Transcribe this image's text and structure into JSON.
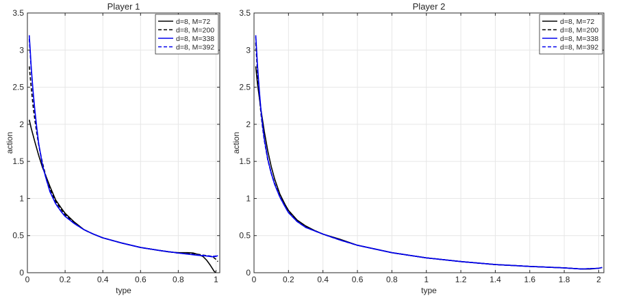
{
  "chart_data": [
    {
      "type": "line",
      "title": "Player 1",
      "xlabel": "type",
      "ylabel": "action",
      "xlim": [
        0,
        1.02
      ],
      "ylim": [
        0,
        3.5
      ],
      "xticks": [
        0,
        0.2,
        0.4,
        0.6,
        0.8,
        1
      ],
      "xtick_labels": [
        "0",
        "0.2",
        "0.4",
        "0.6",
        "0.8",
        "1"
      ],
      "yticks": [
        0,
        0.5,
        1,
        1.5,
        2,
        2.5,
        3,
        3.5
      ],
      "ytick_labels": [
        "0",
        "0.5",
        "1",
        "1.5",
        "2",
        "2.5",
        "3",
        "3.5"
      ],
      "grid": true,
      "legend_position": "top-right",
      "series": [
        {
          "name": "d=8, M=72",
          "color": "#000000",
          "dash": "solid",
          "x": [
            0.01,
            0.02,
            0.04,
            0.06,
            0.08,
            0.1,
            0.12,
            0.15,
            0.18,
            0.2,
            0.25,
            0.3,
            0.35,
            0.4,
            0.5,
            0.6,
            0.7,
            0.75,
            0.8,
            0.85,
            0.88,
            0.9,
            0.93,
            0.95,
            0.97,
            0.99,
            1.0
          ],
          "y": [
            2.06,
            1.95,
            1.76,
            1.58,
            1.42,
            1.29,
            1.16,
            0.98,
            0.87,
            0.8,
            0.68,
            0.58,
            0.52,
            0.47,
            0.4,
            0.34,
            0.3,
            0.28,
            0.27,
            0.27,
            0.265,
            0.25,
            0.22,
            0.17,
            0.1,
            0.02,
            0.0
          ]
        },
        {
          "name": "d=8, M=200",
          "color": "#000000",
          "dash": "dashed",
          "x": [
            0.01,
            0.02,
            0.03,
            0.04,
            0.05,
            0.06,
            0.08,
            0.1,
            0.12,
            0.15,
            0.18,
            0.2,
            0.25,
            0.3,
            0.35,
            0.4,
            0.5,
            0.6,
            0.7,
            0.8,
            0.9,
            0.95,
            0.98,
            1.0,
            1.01
          ],
          "y": [
            2.78,
            2.5,
            2.25,
            2.05,
            1.88,
            1.72,
            1.48,
            1.28,
            1.13,
            0.96,
            0.85,
            0.78,
            0.67,
            0.58,
            0.52,
            0.47,
            0.4,
            0.34,
            0.3,
            0.265,
            0.25,
            0.23,
            0.22,
            0.18,
            0.15
          ]
        },
        {
          "name": "d=8, M=338",
          "color": "#0000ee",
          "dash": "solid",
          "x": [
            0.01,
            0.015,
            0.02,
            0.03,
            0.04,
            0.05,
            0.06,
            0.08,
            0.1,
            0.12,
            0.15,
            0.18,
            0.2,
            0.25,
            0.3,
            0.35,
            0.4,
            0.5,
            0.6,
            0.7,
            0.8,
            0.9,
            0.95,
            0.98,
            1.0,
            1.01
          ],
          "y": [
            3.2,
            3.0,
            2.78,
            2.45,
            2.18,
            1.95,
            1.74,
            1.45,
            1.26,
            1.09,
            0.93,
            0.82,
            0.76,
            0.66,
            0.58,
            0.52,
            0.47,
            0.4,
            0.34,
            0.3,
            0.265,
            0.235,
            0.225,
            0.215,
            0.22,
            0.23
          ]
        },
        {
          "name": "d=8, M=392",
          "color": "#0000ee",
          "dash": "dashed",
          "x": [
            0.01,
            0.015,
            0.02,
            0.03,
            0.04,
            0.05,
            0.06,
            0.08,
            0.1,
            0.12,
            0.15,
            0.18,
            0.2,
            0.25,
            0.3,
            0.35,
            0.4,
            0.5,
            0.6,
            0.7,
            0.8,
            0.9,
            0.95,
            0.98,
            1.0,
            1.01
          ],
          "y": [
            3.15,
            2.95,
            2.75,
            2.42,
            2.15,
            1.93,
            1.73,
            1.45,
            1.26,
            1.09,
            0.93,
            0.82,
            0.76,
            0.66,
            0.58,
            0.52,
            0.47,
            0.4,
            0.34,
            0.3,
            0.265,
            0.24,
            0.23,
            0.22,
            0.225,
            0.23
          ]
        }
      ]
    },
    {
      "type": "line",
      "title": "Player 2",
      "xlabel": "type",
      "ylabel": "action",
      "xlim": [
        0,
        2.03
      ],
      "ylim": [
        0,
        3.5
      ],
      "xticks": [
        0,
        0.2,
        0.4,
        0.6,
        0.8,
        1,
        1.2,
        1.4,
        1.6,
        1.8,
        2
      ],
      "xtick_labels": [
        "0",
        "0.2",
        "0.4",
        "0.6",
        "0.8",
        "1",
        "1.2",
        "1.4",
        "1.6",
        "1.8",
        "2"
      ],
      "yticks": [
        0,
        0.5,
        1,
        1.5,
        2,
        2.5,
        3,
        3.5
      ],
      "ytick_labels": [
        "0",
        "0.5",
        "1",
        "1.5",
        "2",
        "2.5",
        "3",
        "3.5"
      ],
      "grid": true,
      "legend_position": "top-right",
      "series": [
        {
          "name": "d=8, M=72",
          "color": "#000000",
          "dash": "solid",
          "x": [
            0.01,
            0.02,
            0.04,
            0.06,
            0.08,
            0.1,
            0.12,
            0.15,
            0.18,
            0.2,
            0.25,
            0.3,
            0.35,
            0.4,
            0.5,
            0.6,
            0.8,
            1.0,
            1.2,
            1.4,
            1.6,
            1.8,
            1.9,
            1.95,
            2.0,
            2.02
          ],
          "y": [
            2.78,
            2.55,
            2.2,
            1.9,
            1.64,
            1.43,
            1.26,
            1.06,
            0.92,
            0.84,
            0.71,
            0.63,
            0.57,
            0.52,
            0.45,
            0.37,
            0.27,
            0.2,
            0.15,
            0.11,
            0.085,
            0.065,
            0.05,
            0.05,
            0.06,
            0.07
          ]
        },
        {
          "name": "d=8, M=200",
          "color": "#000000",
          "dash": "dashed",
          "x": [
            0.01,
            0.015,
            0.02,
            0.03,
            0.04,
            0.05,
            0.06,
            0.08,
            0.1,
            0.12,
            0.15,
            0.18,
            0.2,
            0.25,
            0.3,
            0.4,
            0.5,
            0.6,
            0.8,
            1.0,
            1.2,
            1.4,
            1.6,
            1.8,
            1.9,
            2.0,
            2.02
          ],
          "y": [
            3.1,
            2.9,
            2.7,
            2.4,
            2.15,
            1.95,
            1.78,
            1.52,
            1.34,
            1.2,
            1.03,
            0.9,
            0.82,
            0.7,
            0.62,
            0.52,
            0.44,
            0.37,
            0.27,
            0.2,
            0.15,
            0.11,
            0.085,
            0.065,
            0.05,
            0.06,
            0.07
          ]
        },
        {
          "name": "d=8, M=338",
          "color": "#0000ee",
          "dash": "solid",
          "x": [
            0.01,
            0.015,
            0.02,
            0.03,
            0.04,
            0.05,
            0.06,
            0.08,
            0.1,
            0.12,
            0.15,
            0.18,
            0.2,
            0.25,
            0.3,
            0.4,
            0.5,
            0.6,
            0.8,
            1.0,
            1.2,
            1.4,
            1.6,
            1.8,
            1.9,
            2.0,
            2.02
          ],
          "y": [
            3.2,
            3.0,
            2.8,
            2.48,
            2.2,
            1.98,
            1.8,
            1.53,
            1.34,
            1.19,
            1.02,
            0.89,
            0.81,
            0.69,
            0.61,
            0.52,
            0.44,
            0.37,
            0.27,
            0.2,
            0.15,
            0.11,
            0.085,
            0.065,
            0.05,
            0.06,
            0.07
          ]
        },
        {
          "name": "d=8, M=392",
          "color": "#0000ee",
          "dash": "dashed",
          "x": [
            0.01,
            0.015,
            0.02,
            0.03,
            0.04,
            0.05,
            0.06,
            0.08,
            0.1,
            0.12,
            0.15,
            0.18,
            0.2,
            0.25,
            0.3,
            0.4,
            0.5,
            0.6,
            0.8,
            1.0,
            1.2,
            1.4,
            1.6,
            1.8,
            1.9,
            2.0,
            2.02
          ],
          "y": [
            3.18,
            2.98,
            2.78,
            2.46,
            2.19,
            1.97,
            1.79,
            1.53,
            1.34,
            1.19,
            1.02,
            0.89,
            0.81,
            0.69,
            0.61,
            0.52,
            0.44,
            0.37,
            0.27,
            0.2,
            0.15,
            0.11,
            0.085,
            0.065,
            0.05,
            0.06,
            0.07
          ]
        }
      ]
    }
  ]
}
